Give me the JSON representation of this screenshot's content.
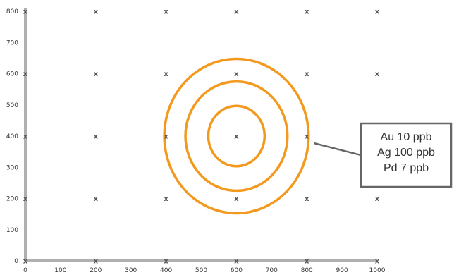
{
  "colors": {
    "axis": "#b0b0b0",
    "ring": "#f39a1e",
    "marker": "#555555",
    "callout": "#666666"
  },
  "chart_data": {
    "type": "scatter",
    "title": "",
    "xlabel": "",
    "ylabel": "",
    "xlim": [
      0,
      1000
    ],
    "ylim": [
      0,
      800
    ],
    "x_ticks": [
      "0",
      "100",
      "200",
      "300",
      "400",
      "500",
      "600",
      "700",
      "800",
      "900",
      "1000"
    ],
    "y_ticks": [
      "0",
      "100",
      "200",
      "300",
      "400",
      "500",
      "600",
      "700",
      "800"
    ],
    "grid": false,
    "marker_symbol": "x",
    "points": [
      {
        "x": 0,
        "y": 800
      },
      {
        "x": 200,
        "y": 800
      },
      {
        "x": 400,
        "y": 800
      },
      {
        "x": 600,
        "y": 800
      },
      {
        "x": 800,
        "y": 800
      },
      {
        "x": 1000,
        "y": 800
      },
      {
        "x": 0,
        "y": 600
      },
      {
        "x": 200,
        "y": 600
      },
      {
        "x": 400,
        "y": 600
      },
      {
        "x": 600,
        "y": 600
      },
      {
        "x": 800,
        "y": 600
      },
      {
        "x": 1000,
        "y": 600
      },
      {
        "x": 0,
        "y": 400
      },
      {
        "x": 200,
        "y": 400
      },
      {
        "x": 400,
        "y": 400
      },
      {
        "x": 600,
        "y": 400
      },
      {
        "x": 800,
        "y": 400
      },
      {
        "x": 1000,
        "y": 400
      },
      {
        "x": 0,
        "y": 200
      },
      {
        "x": 200,
        "y": 200
      },
      {
        "x": 400,
        "y": 200
      },
      {
        "x": 600,
        "y": 200
      },
      {
        "x": 800,
        "y": 200
      },
      {
        "x": 1000,
        "y": 200
      },
      {
        "x": 0,
        "y": 0
      },
      {
        "x": 200,
        "y": 0
      },
      {
        "x": 400,
        "y": 0
      },
      {
        "x": 600,
        "y": 0
      },
      {
        "x": 800,
        "y": 0
      },
      {
        "x": 1000,
        "y": 0
      }
    ],
    "rings": {
      "center": {
        "x": 600,
        "y": 400
      },
      "radii": [
        80,
        145,
        205
      ]
    },
    "annotation": {
      "lines": [
        "Au 10 ppb",
        "Ag 100 ppb",
        "Pd 7 ppb"
      ],
      "pointer_target": {
        "x": 800,
        "y": 400
      }
    }
  }
}
